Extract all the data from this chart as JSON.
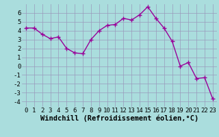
{
  "x": [
    0,
    1,
    2,
    3,
    4,
    5,
    6,
    7,
    8,
    9,
    10,
    11,
    12,
    13,
    14,
    15,
    16,
    17,
    18,
    19,
    20,
    21,
    22,
    23
  ],
  "y": [
    4.3,
    4.3,
    3.6,
    3.1,
    3.3,
    2.0,
    1.5,
    1.4,
    3.0,
    4.0,
    4.6,
    4.7,
    5.4,
    5.2,
    5.8,
    6.7,
    5.4,
    4.3,
    2.8,
    0.0,
    0.4,
    -1.4,
    -1.3,
    -3.7
  ],
  "line_color": "#990099",
  "marker": "+",
  "marker_color": "#990099",
  "bg_color": "#aadddd",
  "grid_color": "#9999bb",
  "xlabel": "Windchill (Refroidissement éolien,°C)",
  "xlim": [
    -0.5,
    23.5
  ],
  "ylim": [
    -4.6,
    7.0
  ],
  "yticks": [
    -4,
    -3,
    -2,
    -1,
    0,
    1,
    2,
    3,
    4,
    5,
    6
  ],
  "xticks": [
    0,
    1,
    2,
    3,
    4,
    5,
    6,
    7,
    8,
    9,
    10,
    11,
    12,
    13,
    14,
    15,
    16,
    17,
    18,
    19,
    20,
    21,
    22,
    23
  ],
  "tick_label_fontsize": 6.5,
  "xlabel_fontsize": 7.5,
  "line_width": 1.0,
  "marker_size": 4.5,
  "marker_linewidth": 1.0
}
